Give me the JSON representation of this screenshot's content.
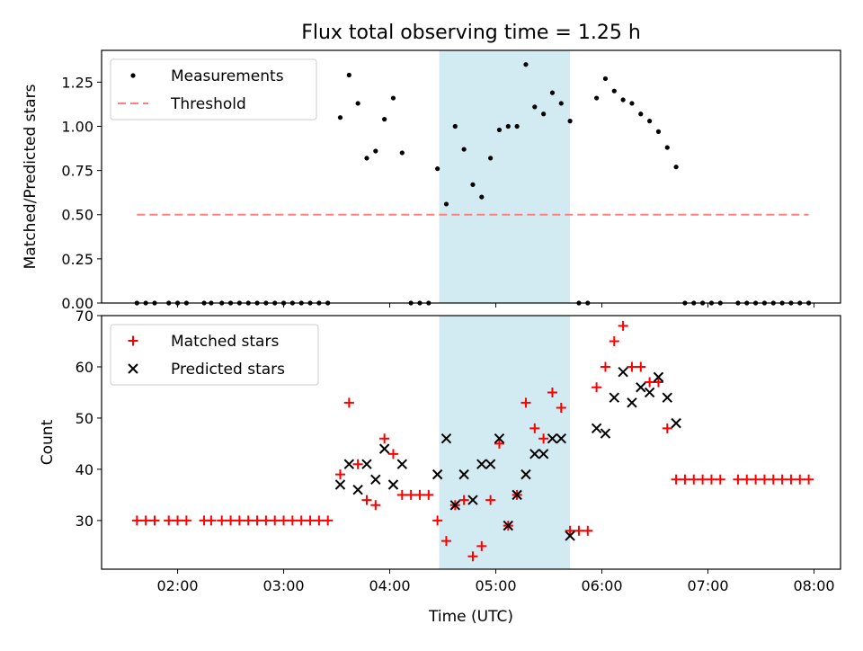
{
  "title": "Flux total observing time = 1.25 h",
  "xlabel": "Time (UTC)",
  "x_ticks": [
    "02:00",
    "03:00",
    "04:00",
    "05:00",
    "06:00",
    "07:00",
    "08:00"
  ],
  "shaded_region": {
    "start": "04:28",
    "end": "05:42",
    "color": "#add8e6"
  },
  "chart_data": [
    {
      "type": "scatter",
      "ylabel": "Matched/Predicted stars",
      "xlim": [
        "01:17",
        "08:15"
      ],
      "ylim": [
        0,
        1.43
      ],
      "y_ticks": [
        "0.00",
        "0.25",
        "0.50",
        "0.75",
        "1.00",
        "1.25"
      ],
      "legend_position": "top-left",
      "series": [
        {
          "name": "Measurements",
          "marker": "dot",
          "color": "#000000",
          "points": [
            [
              "01:37",
              0
            ],
            [
              "01:42",
              0
            ],
            [
              "01:47",
              0
            ],
            [
              "01:55",
              0
            ],
            [
              "02:00",
              0
            ],
            [
              "02:05",
              0
            ],
            [
              "02:15",
              0
            ],
            [
              "02:19",
              0
            ],
            [
              "02:25",
              0
            ],
            [
              "02:30",
              0
            ],
            [
              "02:35",
              0
            ],
            [
              "02:40",
              0
            ],
            [
              "02:45",
              0
            ],
            [
              "02:50",
              0
            ],
            [
              "02:55",
              0
            ],
            [
              "03:00",
              0
            ],
            [
              "03:05",
              0
            ],
            [
              "03:10",
              0
            ],
            [
              "03:15",
              0
            ],
            [
              "03:20",
              0
            ],
            [
              "03:25",
              0
            ],
            [
              "03:32",
              1.05
            ],
            [
              "03:37",
              1.29
            ],
            [
              "03:42",
              1.13
            ],
            [
              "03:47",
              0.82
            ],
            [
              "03:52",
              0.86
            ],
            [
              "03:57",
              1.04
            ],
            [
              "04:02",
              1.16
            ],
            [
              "04:07",
              0.85
            ],
            [
              "04:12",
              0
            ],
            [
              "04:17",
              0
            ],
            [
              "04:22",
              0
            ],
            [
              "04:27",
              0.76
            ],
            [
              "04:32",
              0.56
            ],
            [
              "04:37",
              1.0
            ],
            [
              "04:42",
              0.87
            ],
            [
              "04:47",
              0.67
            ],
            [
              "04:52",
              0.6
            ],
            [
              "04:57",
              0.82
            ],
            [
              "05:02",
              0.98
            ],
            [
              "05:07",
              1.0
            ],
            [
              "05:12",
              1.0
            ],
            [
              "05:17",
              1.35
            ],
            [
              "05:22",
              1.11
            ],
            [
              "05:27",
              1.07
            ],
            [
              "05:32",
              1.19
            ],
            [
              "05:37",
              1.13
            ],
            [
              "05:42",
              1.03
            ],
            [
              "05:47",
              0
            ],
            [
              "05:52",
              0
            ],
            [
              "05:57",
              1.16
            ],
            [
              "06:02",
              1.27
            ],
            [
              "06:07",
              1.2
            ],
            [
              "06:12",
              1.15
            ],
            [
              "06:17",
              1.13
            ],
            [
              "06:22",
              1.07
            ],
            [
              "06:27",
              1.03
            ],
            [
              "06:32",
              0.97
            ],
            [
              "06:37",
              0.88
            ],
            [
              "06:42",
              0.77
            ],
            [
              "06:47",
              0
            ],
            [
              "06:52",
              0
            ],
            [
              "06:57",
              0
            ],
            [
              "07:02",
              0
            ],
            [
              "07:07",
              0
            ],
            [
              "07:17",
              0
            ],
            [
              "07:22",
              0
            ],
            [
              "07:27",
              0
            ],
            [
              "07:32",
              0
            ],
            [
              "07:37",
              0
            ],
            [
              "07:42",
              0
            ],
            [
              "07:47",
              0
            ],
            [
              "07:52",
              0
            ],
            [
              "07:57",
              0
            ]
          ]
        },
        {
          "name": "Threshold",
          "type": "line",
          "dashed": true,
          "color": "#ff7f7f",
          "points": [
            [
              "01:37",
              0.5
            ],
            [
              "07:57",
              0.5
            ]
          ]
        }
      ]
    },
    {
      "type": "scatter",
      "ylabel": "Count",
      "xlim": [
        "01:17",
        "08:15"
      ],
      "ylim": [
        20.5,
        70
      ],
      "y_ticks": [
        "30",
        "40",
        "50",
        "60",
        "70"
      ],
      "legend_position": "top-left",
      "series": [
        {
          "name": "Matched stars",
          "marker": "+",
          "color": "#ff0000",
          "points": [
            [
              "01:37",
              30
            ],
            [
              "01:42",
              30
            ],
            [
              "01:47",
              30
            ],
            [
              "01:55",
              30
            ],
            [
              "02:00",
              30
            ],
            [
              "02:05",
              30
            ],
            [
              "02:15",
              30
            ],
            [
              "02:19",
              30
            ],
            [
              "02:25",
              30
            ],
            [
              "02:30",
              30
            ],
            [
              "02:35",
              30
            ],
            [
              "02:40",
              30
            ],
            [
              "02:45",
              30
            ],
            [
              "02:50",
              30
            ],
            [
              "02:55",
              30
            ],
            [
              "03:00",
              30
            ],
            [
              "03:05",
              30
            ],
            [
              "03:10",
              30
            ],
            [
              "03:15",
              30
            ],
            [
              "03:20",
              30
            ],
            [
              "03:25",
              30
            ],
            [
              "03:32",
              39
            ],
            [
              "03:37",
              53
            ],
            [
              "03:42",
              41
            ],
            [
              "03:47",
              34
            ],
            [
              "03:52",
              33
            ],
            [
              "03:57",
              46
            ],
            [
              "04:02",
              43
            ],
            [
              "04:07",
              35
            ],
            [
              "04:12",
              35
            ],
            [
              "04:17",
              35
            ],
            [
              "04:22",
              35
            ],
            [
              "04:27",
              30
            ],
            [
              "04:32",
              26
            ],
            [
              "04:37",
              33
            ],
            [
              "04:42",
              34
            ],
            [
              "04:47",
              23
            ],
            [
              "04:52",
              25
            ],
            [
              "04:57",
              34
            ],
            [
              "05:02",
              45
            ],
            [
              "05:07",
              29
            ],
            [
              "05:12",
              35
            ],
            [
              "05:17",
              53
            ],
            [
              "05:22",
              48
            ],
            [
              "05:27",
              46
            ],
            [
              "05:32",
              55
            ],
            [
              "05:37",
              52
            ],
            [
              "05:42",
              28
            ],
            [
              "05:47",
              28
            ],
            [
              "05:52",
              28
            ],
            [
              "05:57",
              56
            ],
            [
              "06:02",
              60
            ],
            [
              "06:07",
              65
            ],
            [
              "06:12",
              68
            ],
            [
              "06:17",
              60
            ],
            [
              "06:22",
              60
            ],
            [
              "06:27",
              57
            ],
            [
              "06:32",
              57
            ],
            [
              "06:37",
              48
            ],
            [
              "06:42",
              38
            ],
            [
              "06:47",
              38
            ],
            [
              "06:52",
              38
            ],
            [
              "06:57",
              38
            ],
            [
              "07:02",
              38
            ],
            [
              "07:07",
              38
            ],
            [
              "07:17",
              38
            ],
            [
              "07:22",
              38
            ],
            [
              "07:27",
              38
            ],
            [
              "07:32",
              38
            ],
            [
              "07:37",
              38
            ],
            [
              "07:42",
              38
            ],
            [
              "07:47",
              38
            ],
            [
              "07:52",
              38
            ],
            [
              "07:57",
              38
            ]
          ]
        },
        {
          "name": "Predicted stars",
          "marker": "x",
          "color": "#000000",
          "points": [
            [
              "03:32",
              37
            ],
            [
              "03:37",
              41
            ],
            [
              "03:42",
              36
            ],
            [
              "03:47",
              41
            ],
            [
              "03:52",
              38
            ],
            [
              "03:57",
              44
            ],
            [
              "04:02",
              37
            ],
            [
              "04:07",
              41
            ],
            [
              "04:27",
              39
            ],
            [
              "04:32",
              46
            ],
            [
              "04:37",
              33
            ],
            [
              "04:42",
              39
            ],
            [
              "04:47",
              34
            ],
            [
              "04:52",
              41
            ],
            [
              "04:57",
              41
            ],
            [
              "05:02",
              46
            ],
            [
              "05:07",
              29
            ],
            [
              "05:12",
              35
            ],
            [
              "05:17",
              39
            ],
            [
              "05:22",
              43
            ],
            [
              "05:27",
              43
            ],
            [
              "05:32",
              46
            ],
            [
              "05:37",
              46
            ],
            [
              "05:42",
              27
            ],
            [
              "05:57",
              48
            ],
            [
              "06:02",
              47
            ],
            [
              "06:07",
              54
            ],
            [
              "06:12",
              59
            ],
            [
              "06:17",
              53
            ],
            [
              "06:22",
              56
            ],
            [
              "06:27",
              55
            ],
            [
              "06:32",
              58
            ],
            [
              "06:37",
              54
            ],
            [
              "06:42",
              49
            ]
          ]
        }
      ]
    }
  ]
}
